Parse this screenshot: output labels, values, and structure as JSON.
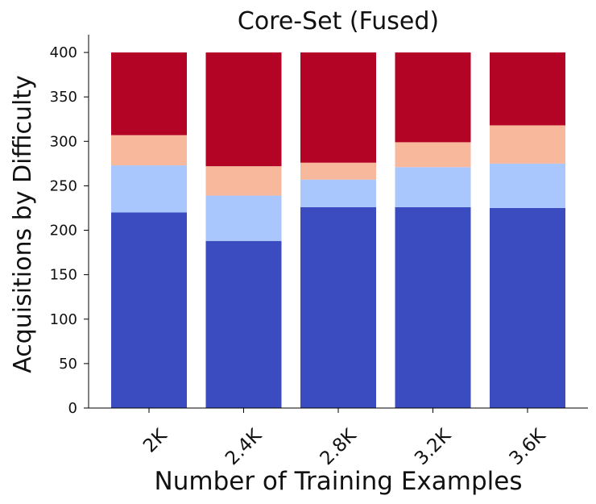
{
  "chart_data": {
    "type": "bar",
    "stacked": true,
    "title": "Core-Set (Fused)",
    "xlabel": "Number of Training Examples",
    "ylabel": "Acquisitions by Difficulty",
    "categories": [
      "2K",
      "2.4K",
      "2.8K",
      "3.2K",
      "3.6K"
    ],
    "ylim": [
      0,
      420
    ],
    "yticks": [
      0,
      50,
      100,
      150,
      200,
      250,
      300,
      350,
      400
    ],
    "grid": false,
    "legend": "none",
    "series": [
      {
        "color": "#3b4cc0",
        "values": [
          220,
          188,
          226,
          226,
          225
        ]
      },
      {
        "color": "#aac7fd",
        "values": [
          53,
          51,
          31,
          45,
          50
        ]
      },
      {
        "color": "#f7b89c",
        "values": [
          34,
          33,
          19,
          28,
          43
        ]
      },
      {
        "color": "#b40426",
        "values": [
          93,
          128,
          124,
          101,
          82
        ]
      }
    ]
  }
}
